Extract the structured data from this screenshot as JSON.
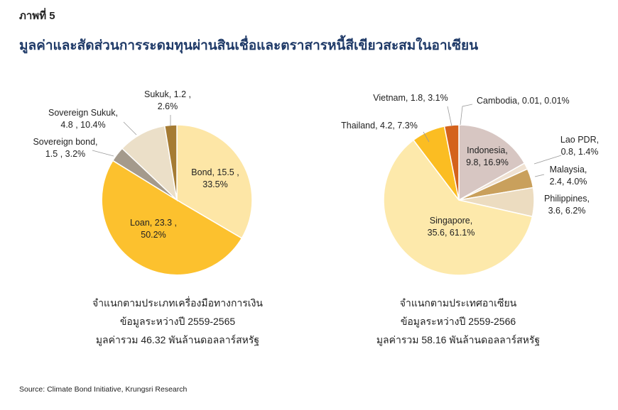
{
  "figure_label": "ภาพที่ 5",
  "title": "มูลค่าและสัดส่วนการระดมทุนผ่านสินเชื่อและตราสารหนี้สีเขียวสะสมในอาเซียน",
  "source": "Source: Climate Bond Initiative, Krungsri Research",
  "chart_data": [
    {
      "type": "pie",
      "caption": [
        "จำแนกตามประเภทเครื่องมือทางการเงิน",
        "ข้อมูลระหว่างปี 2559-2565",
        "มูลค่ารวม 46.32 พันล้านดอลลาร์สหรัฐ"
      ],
      "slices": [
        {
          "name": "Bond",
          "value": 15.5,
          "percent": 33.5,
          "color": "#fde6a6",
          "label": [
            "Bond,  15.5 ,",
            "33.5%"
          ]
        },
        {
          "name": "Loan",
          "value": 23.3,
          "percent": 50.2,
          "color": "#fcc12e",
          "label": [
            "Loan,  23.3 ,",
            "50.2%"
          ]
        },
        {
          "name": "Sovereign bond",
          "value": 1.5,
          "percent": 3.2,
          "color": "#a49a8c",
          "label": [
            "Sovereign bond,",
            "1.5 , 3.2%"
          ]
        },
        {
          "name": "Sovereign Sukuk",
          "value": 4.8,
          "percent": 10.4,
          "color": "#ebdfc8",
          "label": [
            "Sovereign Sukuk,",
            "4.8 , 10.4%"
          ]
        },
        {
          "name": "Sukuk",
          "value": 1.2,
          "percent": 2.6,
          "color": "#a57b33",
          "label": [
            "Sukuk,  1.2 ,",
            "2.6%"
          ]
        }
      ]
    },
    {
      "type": "pie",
      "caption": [
        "จำแนกตามประเทศอาเซียน",
        "ข้อมูลระหว่างปี 2559-2566",
        "มูลค่ารวม 58.16 พันล้านดอลลาร์สหรัฐ"
      ],
      "slices": [
        {
          "name": "Cambodia",
          "value": 0.01,
          "percent": 0.01,
          "color": "#8b6a4a",
          "label": [
            "Cambodia, 0.01, 0.01%"
          ]
        },
        {
          "name": "Indonesia",
          "value": 9.8,
          "percent": 16.9,
          "color": "#d7c6c2",
          "label": [
            "Indonesia,",
            "9.8, 16.9%"
          ]
        },
        {
          "name": "Lao PDR",
          "value": 0.8,
          "percent": 1.4,
          "color": "#efe1d1",
          "label": [
            "Lao PDR,",
            "0.8, 1.4%"
          ]
        },
        {
          "name": "Malaysia",
          "value": 2.4,
          "percent": 4.0,
          "color": "#c9a05c",
          "label": [
            "Malaysia,",
            "2.4, 4.0%"
          ]
        },
        {
          "name": "Philippines",
          "value": 3.6,
          "percent": 6.2,
          "color": "#ecdcc0",
          "label": [
            "Philippines,",
            "3.6, 6.2%"
          ]
        },
        {
          "name": "Singapore",
          "value": 35.6,
          "percent": 61.1,
          "color": "#fde9ab",
          "label": [
            "Singapore,",
            "35.6, 61.1%"
          ]
        },
        {
          "name": "Thailand",
          "value": 4.2,
          "percent": 7.3,
          "color": "#fbbd22",
          "label": [
            "Thailand, 4.2, 7.3%"
          ]
        },
        {
          "name": "Vietnam",
          "value": 1.8,
          "percent": 3.1,
          "color": "#d4621c",
          "label": [
            "Vietnam, 1.8, 3.1%"
          ]
        }
      ]
    }
  ]
}
